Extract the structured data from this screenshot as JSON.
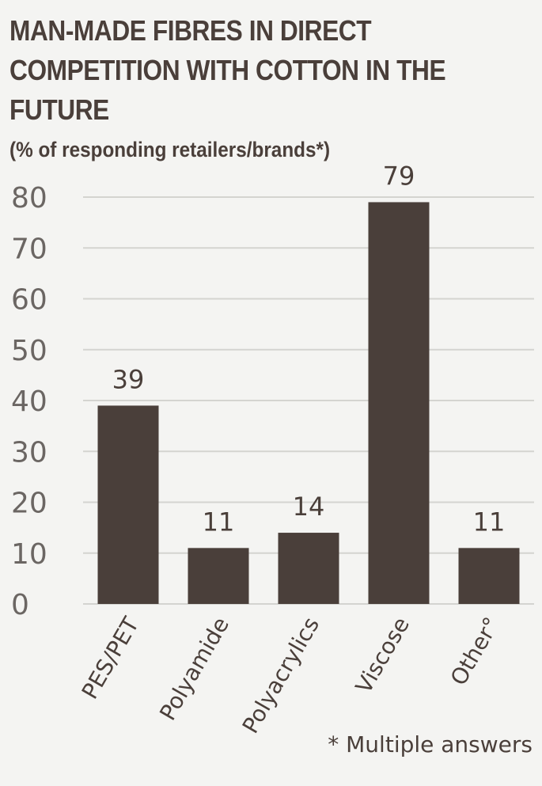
{
  "title": "MAN-MADE FIBRES IN DIRECT COMPETITION WITH COTTON IN THE FUTURE",
  "subtitle": "(% of responding retailers/brands*)",
  "footnote": "* Multiple answers",
  "colors": {
    "bar": "#4a3f3a",
    "grid": "#d4d4d0",
    "background": "#f4f4f2",
    "axis_text": "#6b6663"
  },
  "chart_data": {
    "type": "bar",
    "categories": [
      "PES/PET",
      "Polyamide",
      "Polyacrylics",
      "Viscose",
      "Other°"
    ],
    "values": [
      39,
      11,
      14,
      79,
      11
    ],
    "data_labels": [
      "39",
      "11",
      "14",
      "79",
      "11"
    ],
    "title": "MAN-MADE FIBRES IN DIRECT COMPETITION WITH COTTON IN THE FUTURE",
    "subtitle": "(% of responding retailers/brands*)",
    "xlabel": "",
    "ylabel": "",
    "ylim": [
      0,
      80
    ],
    "yticks": [
      0,
      10,
      20,
      30,
      40,
      50,
      60,
      70,
      80
    ],
    "ytick_labels": [
      "0",
      "10",
      "20",
      "30",
      "40",
      "50",
      "60",
      "70",
      "80"
    ],
    "grid": true,
    "legend": "none"
  }
}
